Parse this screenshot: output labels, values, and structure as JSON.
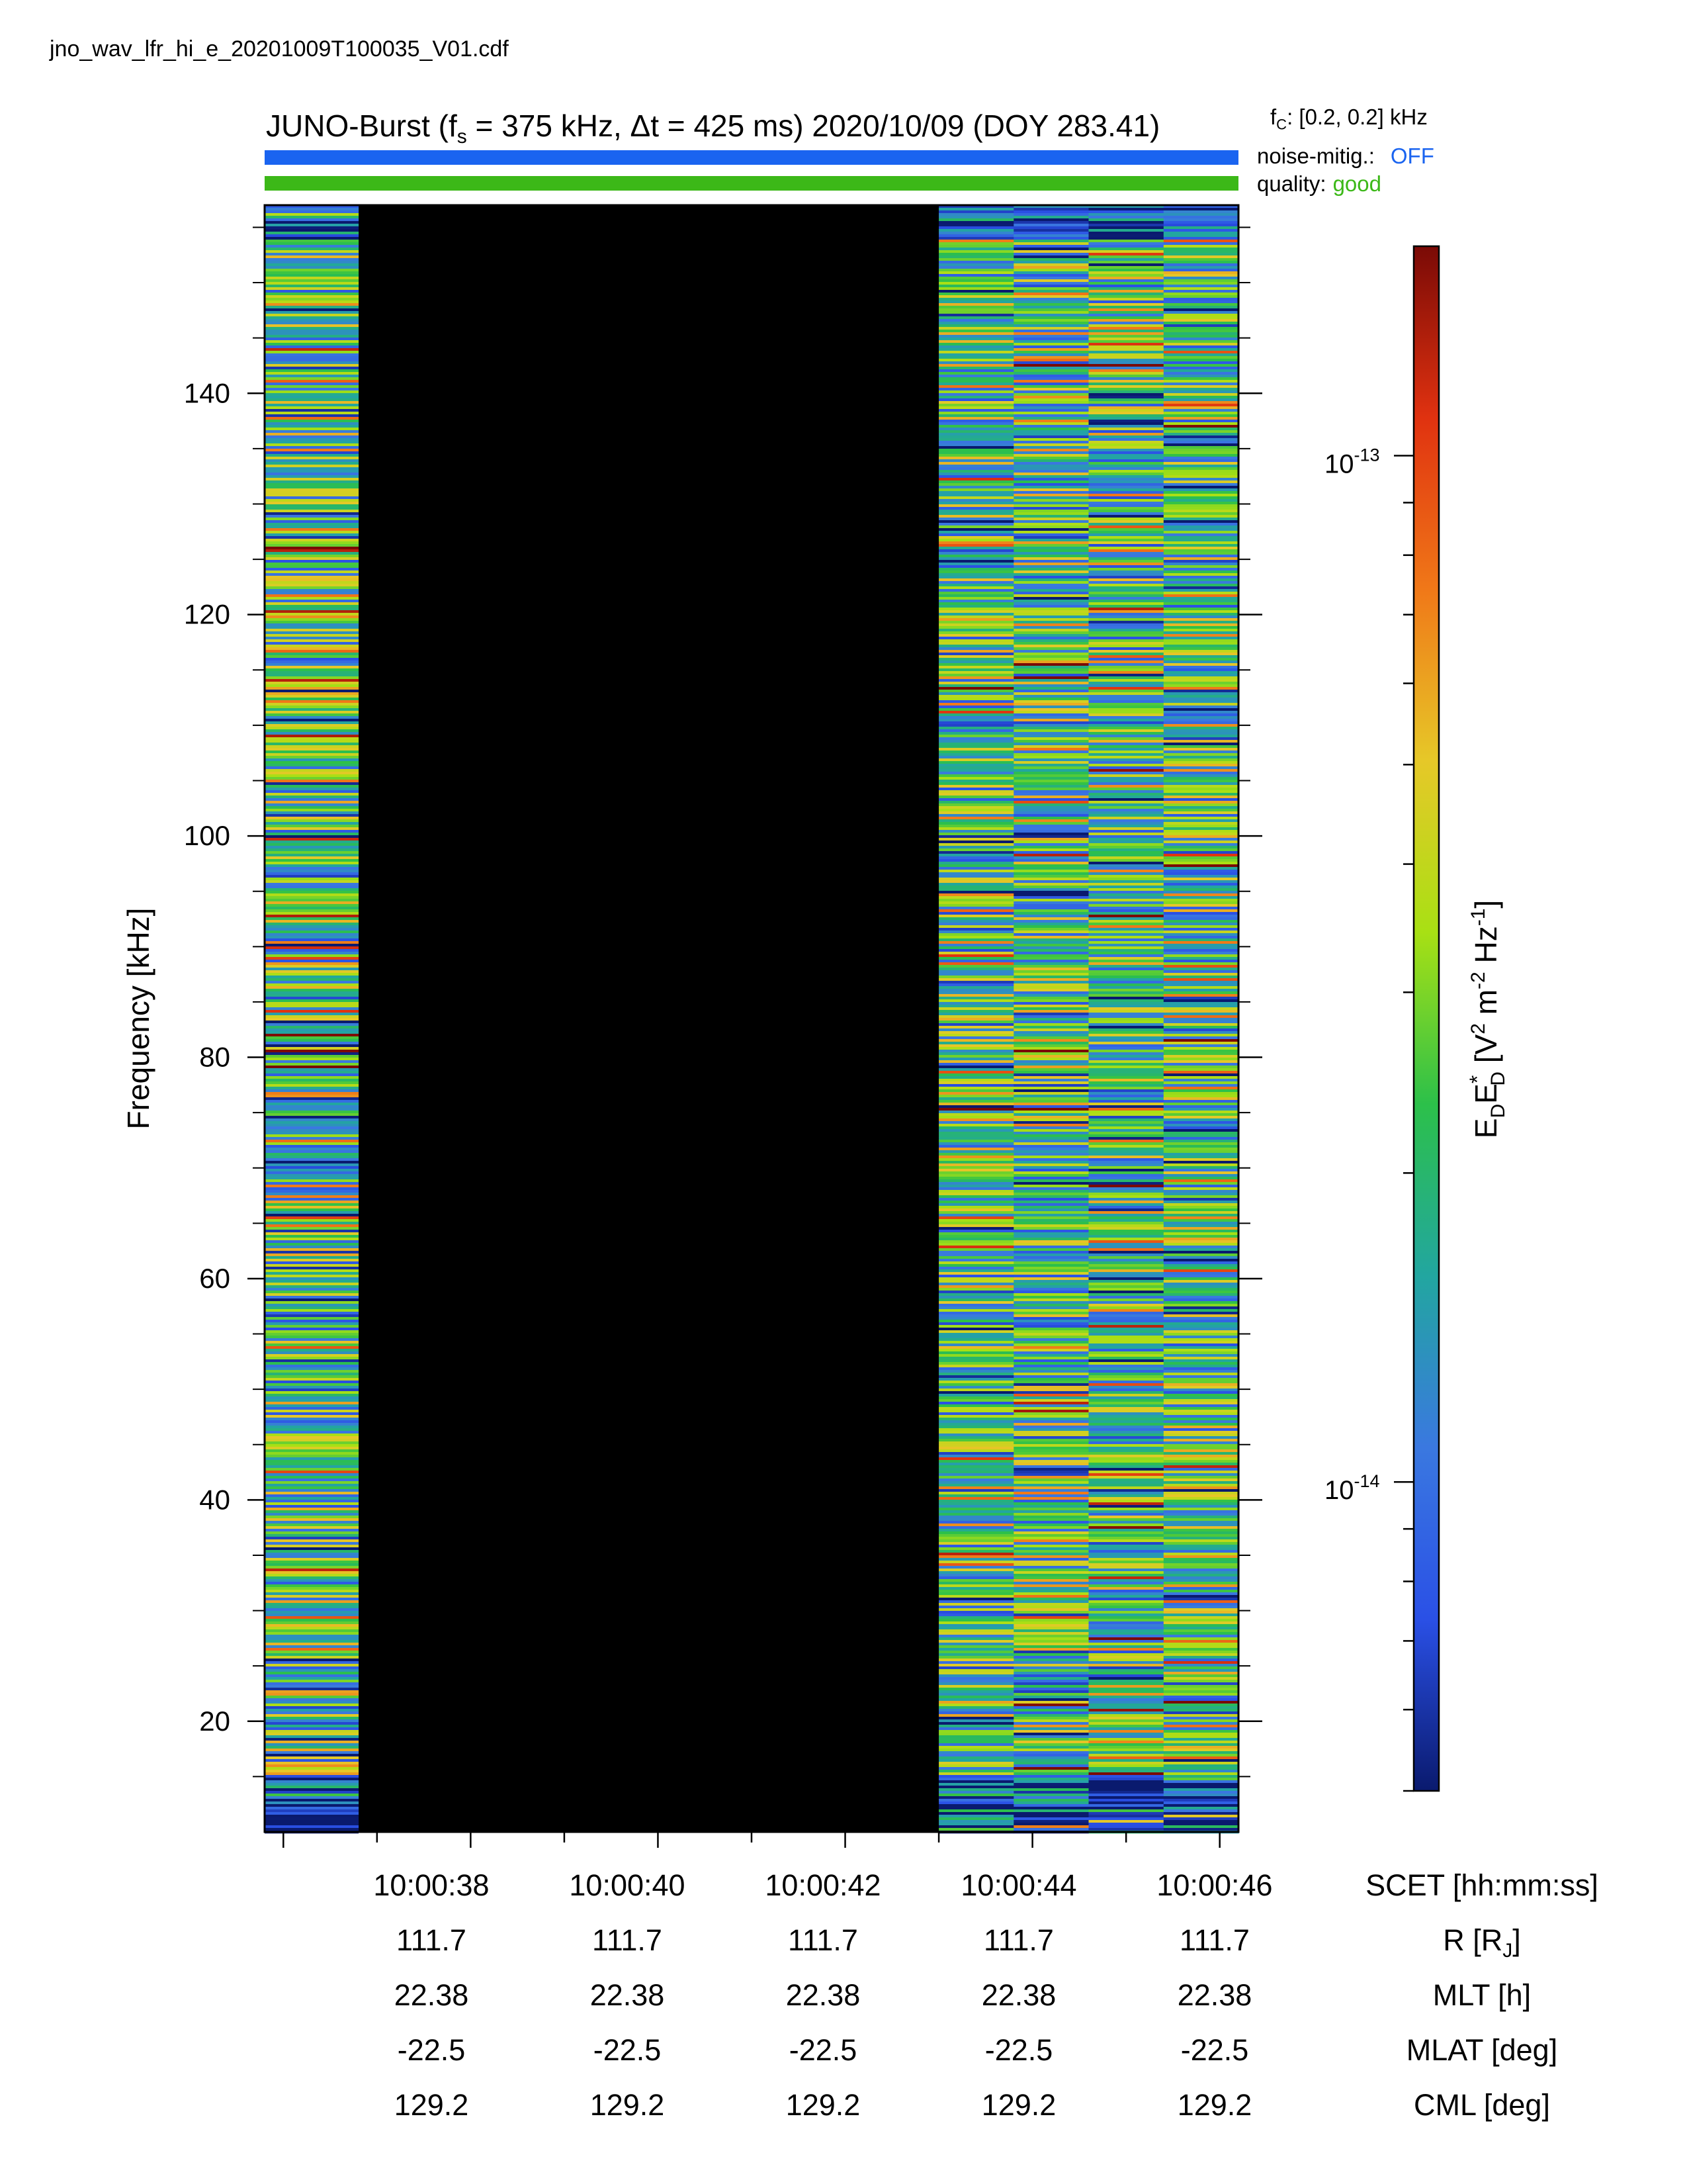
{
  "file_name": "jno_wav_lfr_hi_e_20201009T100035_V01.cdf",
  "header": {
    "title_prefix": "JUNO-Burst (f",
    "title_sub": "s",
    "title_suffix": " = 375 kHz, Δt = 425 ms)  2020/10/09 (DOY 283.41)",
    "fc_prefix": "f",
    "fc_sub": "C",
    "fc_suffix": ": [0.2, 0.2] kHz",
    "noise_label": "noise-mitig.:",
    "noise_value": "OFF",
    "quality_label": "quality:",
    "quality_value": "good",
    "noise_bar_color": "#1a64f0",
    "quality_bar_color": "#3cb818"
  },
  "chart_data": {
    "type": "heatmap",
    "ylabel": "Frequency [kHz]",
    "ylim": [
      10,
      157
    ],
    "y_ticks": [
      20,
      40,
      60,
      80,
      100,
      120,
      140
    ],
    "x_tick_labels": [
      "10:00:38",
      "10:00:40",
      "10:00:42",
      "10:00:44",
      "10:00:46"
    ],
    "x_range_seconds": [
      35.8,
      46.2
    ],
    "data_segments": [
      {
        "start": "10:00:35.8",
        "end": "10:00:36.8"
      },
      {
        "start": "10:00:43.0",
        "end": "10:00:46.2"
      }
    ],
    "gap_fill_color": "#000000",
    "colorscale": [
      "#0a1a6e",
      "#2a50e6",
      "#3a78e0",
      "#22a6a0",
      "#2cc04a",
      "#a8e014",
      "#e6c828",
      "#f07818",
      "#e03210",
      "#7a0a06"
    ],
    "colorbar": {
      "label": "E_D E*_D [V² m⁻² Hz⁻¹]",
      "scale": "log",
      "range": [
        5e-15,
        1.6e-13
      ],
      "major_ticks": [
        {
          "base": "10",
          "exp": "-13",
          "value": 1e-13
        },
        {
          "base": "10",
          "exp": "-14",
          "value": 1e-14
        }
      ]
    },
    "footer_rows": [
      {
        "label": "SCET [hh:mm:ss]",
        "values": [
          "10:00:38",
          "10:00:40",
          "10:00:42",
          "10:00:44",
          "10:00:46"
        ]
      },
      {
        "label": "R [R_J]",
        "values": [
          "111.7",
          "111.7",
          "111.7",
          "111.7",
          "111.7"
        ]
      },
      {
        "label": "MLT [h]",
        "values": [
          "22.38",
          "22.38",
          "22.38",
          "22.38",
          "22.38"
        ]
      },
      {
        "label": "MLAT [deg]",
        "values": [
          "-22.5",
          "-22.5",
          "-22.5",
          "-22.5",
          "-22.5"
        ]
      },
      {
        "label": "CML [deg]",
        "values": [
          "129.2",
          "129.2",
          "129.2",
          "129.2",
          "129.2"
        ]
      }
    ]
  }
}
